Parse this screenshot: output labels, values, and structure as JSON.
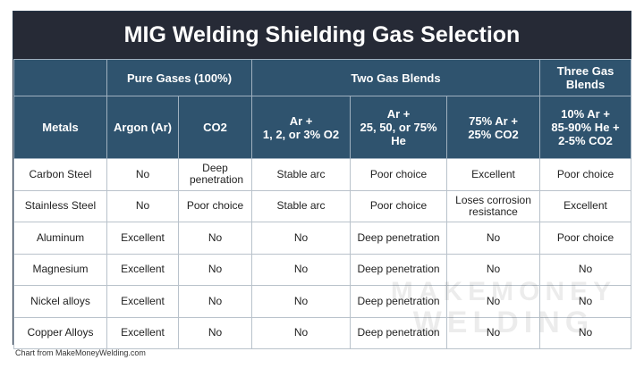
{
  "title": "MIG Welding Shielding Gas Selection",
  "groups": [
    "Pure Gases (100%)",
    "Two Gas Blends",
    "Three Gas Blends"
  ],
  "columns": [
    "Metals",
    "Argon (Ar)",
    "CO2",
    "Ar +\n1, 2, or 3% O2",
    "Ar +\n25, 50, or 75% He",
    "75% Ar +\n25% CO2",
    "10% Ar +\n85-90% He +\n2-5% CO2"
  ],
  "rows": [
    [
      "Carbon Steel",
      "No",
      "Deep penetration",
      "Stable arc",
      "Poor choice",
      "Excellent",
      "Poor choice"
    ],
    [
      "Stainless Steel",
      "No",
      "Poor choice",
      "Stable arc",
      "Poor choice",
      "Loses corrosion resistance",
      "Excellent"
    ],
    [
      "Aluminum",
      "Excellent",
      "No",
      "No",
      "Deep penetration",
      "No",
      "Poor choice"
    ],
    [
      "Magnesium",
      "Excellent",
      "No",
      "No",
      "Deep penetration",
      "No",
      "No"
    ],
    [
      "Nickel alloys",
      "Excellent",
      "No",
      "No",
      "Deep penetration",
      "No",
      "No"
    ],
    [
      "Copper Alloys",
      "Excellent",
      "No",
      "No",
      "Deep penetration",
      "No",
      "No"
    ]
  ],
  "watermark": {
    "line1": "MAKEMONEY",
    "line2": "WELDING"
  },
  "credit": "Chart from MakeMoneyWelding.com",
  "colors": {
    "title_bg": "#262a36",
    "header_bg": "#2f536e"
  }
}
